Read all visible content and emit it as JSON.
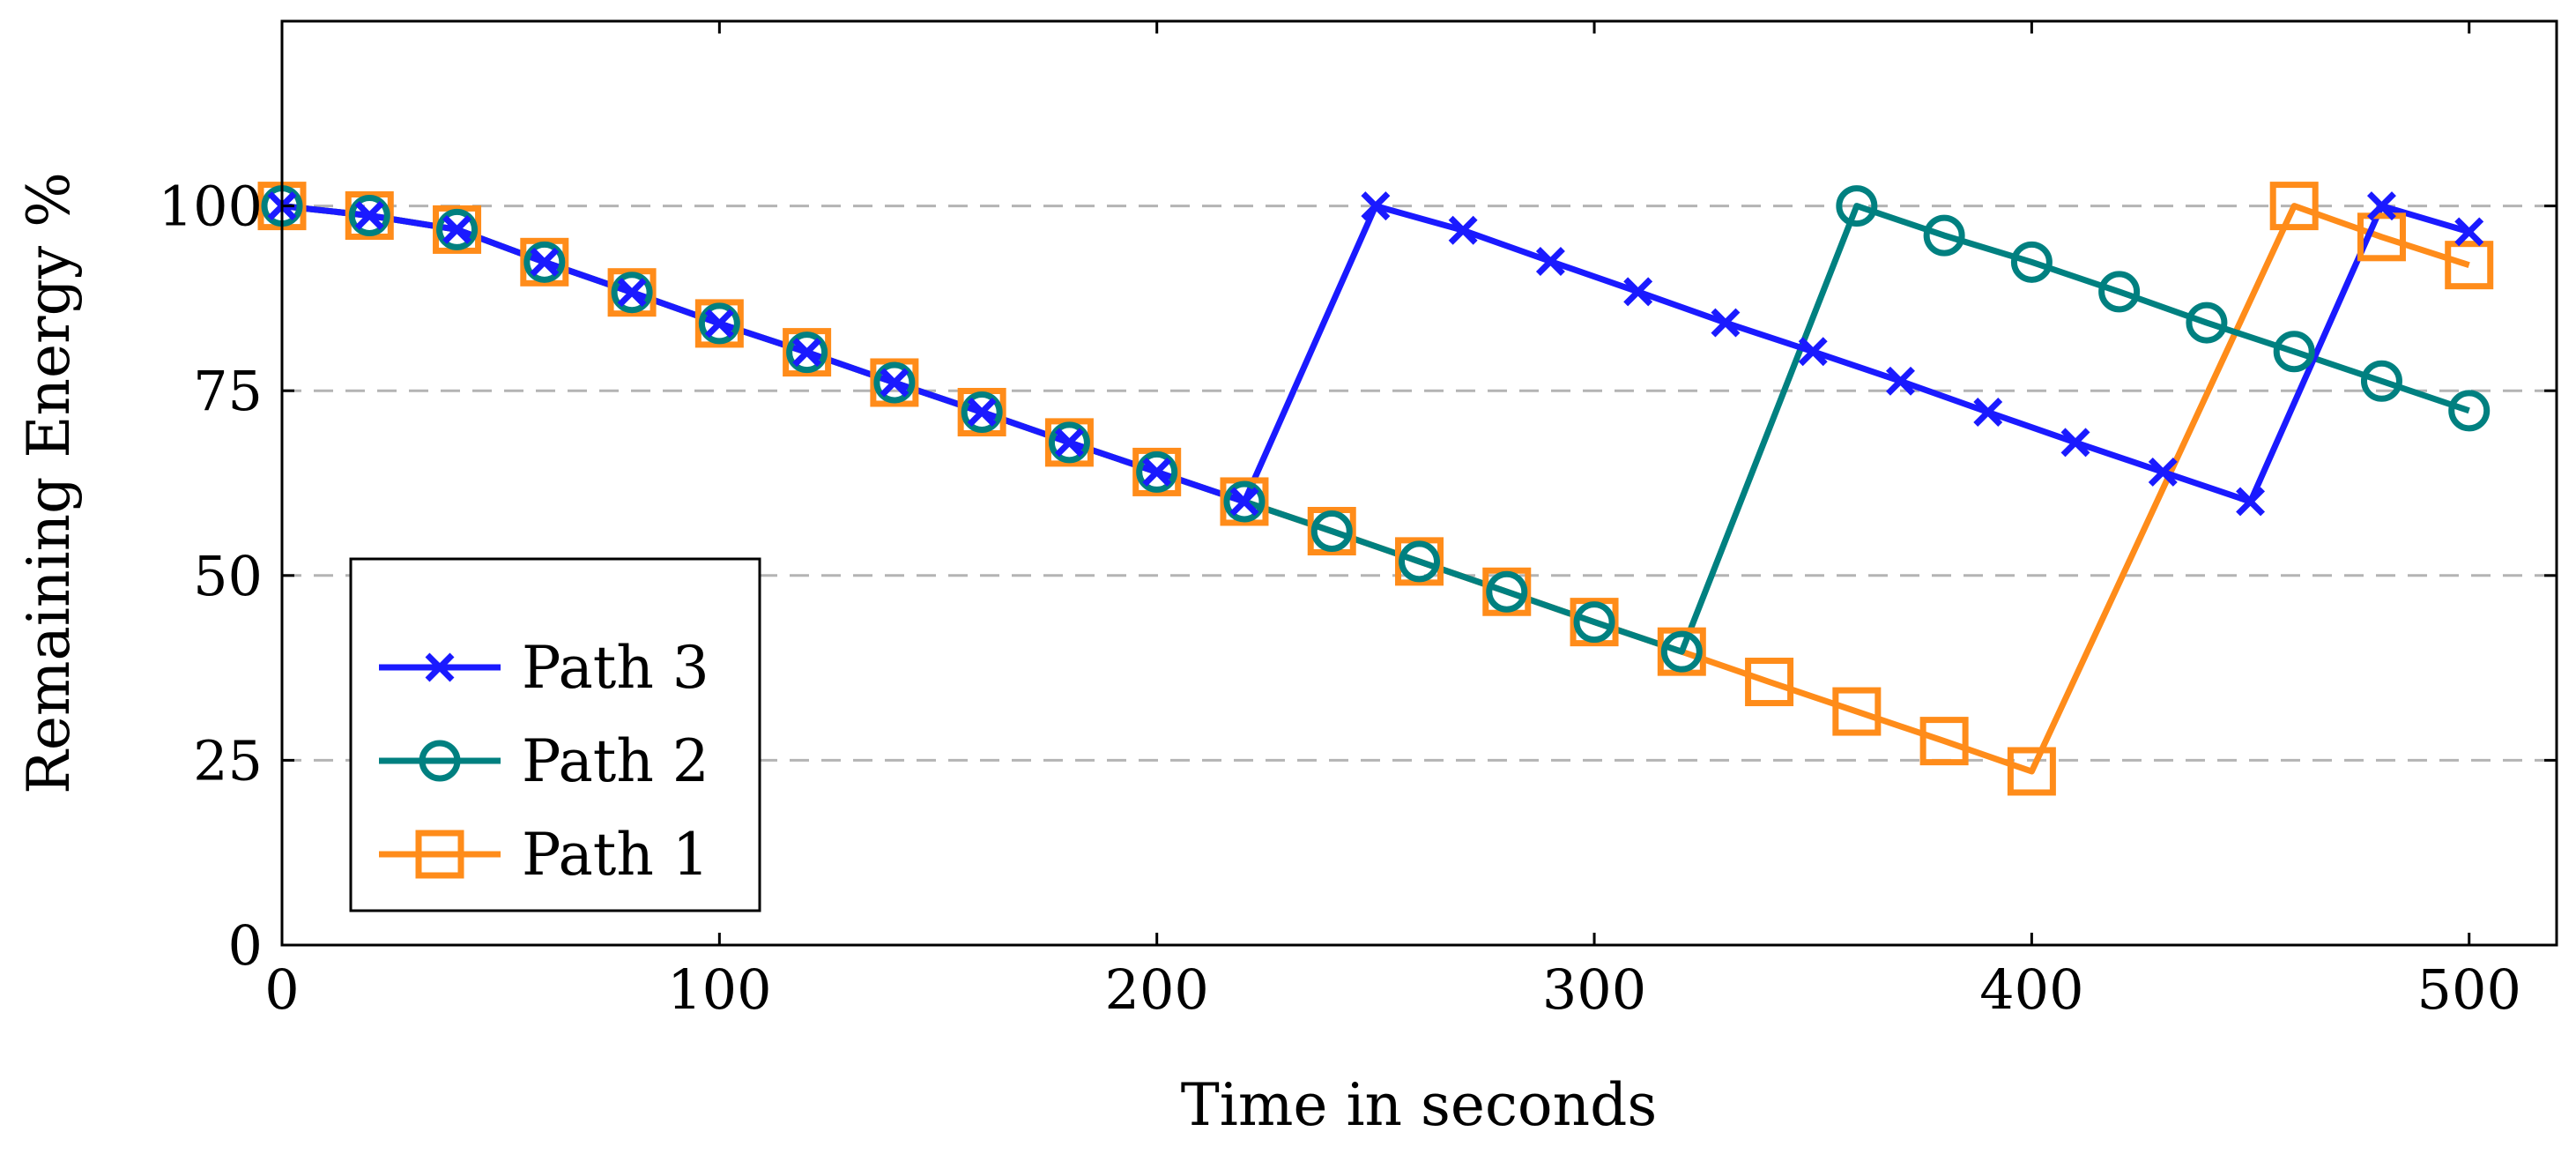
{
  "chart_data": {
    "type": "line",
    "title": "",
    "xlabel": "Time in seconds",
    "ylabel": "Remaining Energy %",
    "xlim": [
      0,
      520
    ],
    "ylim": [
      0,
      125
    ],
    "xticks": [
      0,
      100,
      200,
      300,
      400,
      500
    ],
    "yticks": [
      0,
      25,
      50,
      75,
      100
    ],
    "grid": "horizontal-dashed",
    "legend_position": "bottom-left",
    "series": [
      {
        "name": "Path 3",
        "color": "#1a1aff",
        "marker": "x",
        "x": [
          0,
          20,
          40,
          60,
          80,
          100,
          120,
          140,
          160,
          180,
          200,
          220,
          250,
          270,
          290,
          310,
          330,
          350,
          370,
          390,
          410,
          430,
          450,
          480,
          500
        ],
        "y": [
          100,
          98.7,
          96.8,
          92.4,
          88.3,
          84.1,
          80.2,
          76.1,
          72.1,
          68,
          64,
          60,
          100,
          96.7,
          92.5,
          88.4,
          84.2,
          80.3,
          76.3,
          72.1,
          68,
          64,
          60,
          100,
          96.5
        ]
      },
      {
        "name": "Path 2",
        "color": "#008080",
        "marker": "circle",
        "x": [
          0,
          20,
          40,
          60,
          80,
          100,
          120,
          140,
          160,
          180,
          200,
          220,
          240,
          260,
          280,
          300,
          320,
          360,
          380,
          400,
          420,
          440,
          460,
          480,
          500
        ],
        "y": [
          100,
          98.7,
          96.8,
          92.4,
          88.3,
          84.1,
          80.2,
          76.1,
          72.1,
          68,
          64,
          60,
          56,
          51.9,
          47.8,
          43.7,
          39.7,
          100,
          96,
          92.4,
          88.4,
          84.2,
          80.3,
          76.3,
          72.3
        ]
      },
      {
        "name": "Path 1",
        "color": "#ff8c1a",
        "marker": "square",
        "x": [
          0,
          20,
          40,
          60,
          80,
          100,
          120,
          140,
          160,
          180,
          200,
          220,
          240,
          260,
          280,
          300,
          320,
          340,
          360,
          380,
          400,
          460,
          480,
          500
        ],
        "y": [
          100,
          98.7,
          96.8,
          92.4,
          88.3,
          84.1,
          80.2,
          76.1,
          72.1,
          68,
          64,
          60,
          56,
          51.9,
          47.8,
          43.7,
          39.7,
          35.6,
          31.6,
          27.6,
          23.5,
          100,
          95.8,
          92
        ]
      }
    ],
    "legend_order": [
      "Path 3",
      "Path 2",
      "Path 1"
    ]
  }
}
